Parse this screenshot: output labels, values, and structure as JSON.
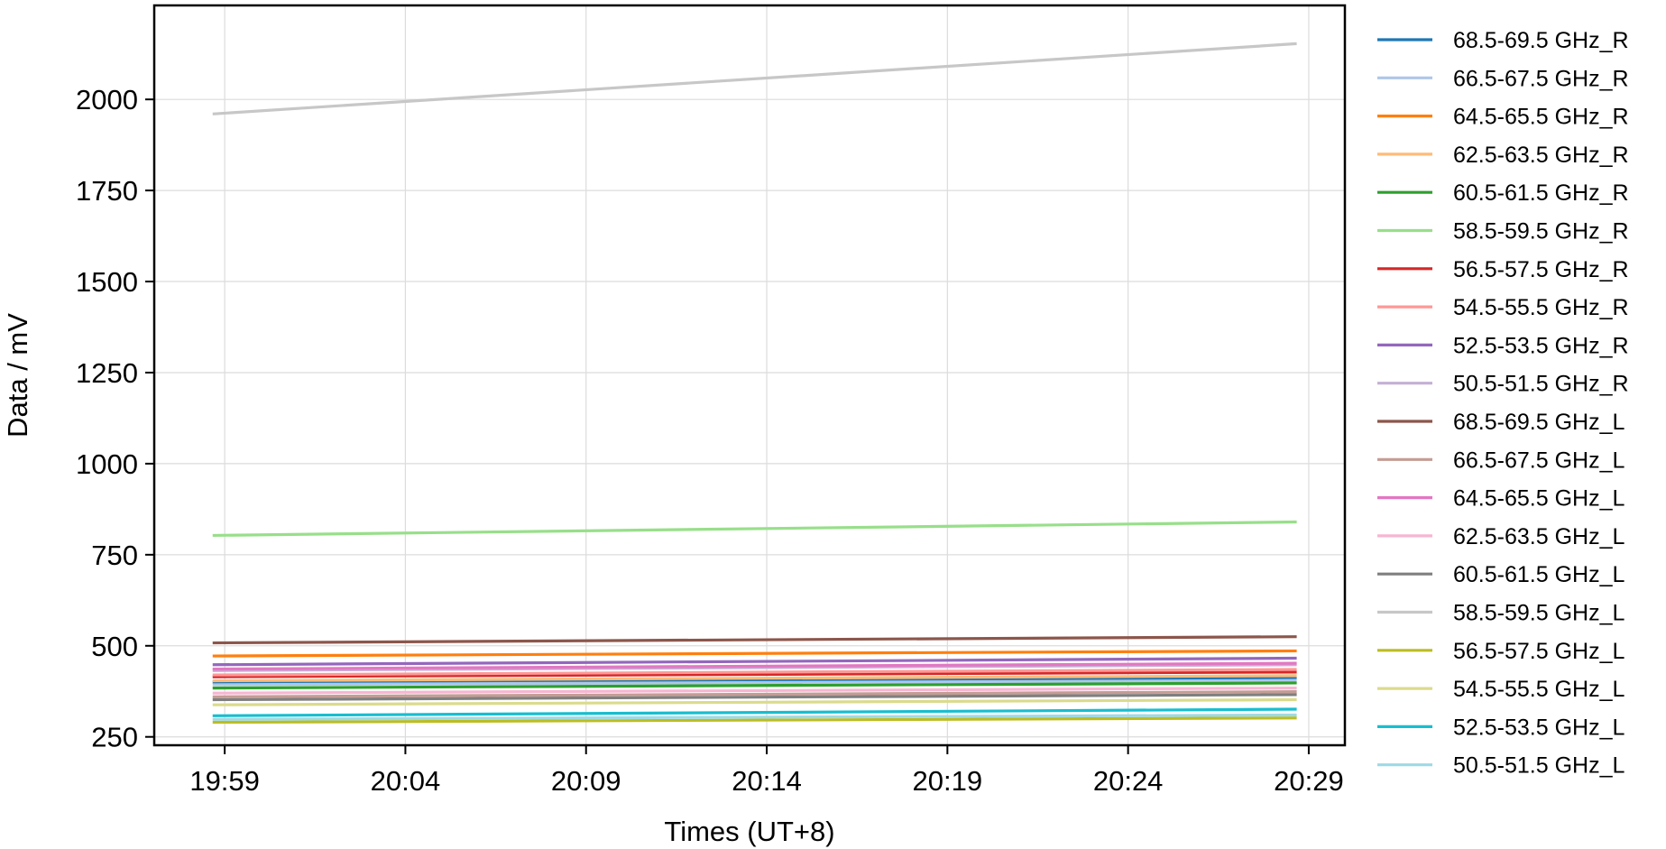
{
  "chart_data": {
    "type": "line",
    "xlabel": "Times (UT+8)",
    "ylabel": "Data / mV",
    "x_ticks": [
      "19:59",
      "20:04",
      "20:09",
      "20:14",
      "20:19",
      "20:24",
      "20:29"
    ],
    "y_ticks": [
      250,
      500,
      750,
      1000,
      1250,
      1500,
      1750,
      2000
    ],
    "xlim": [
      "19:57:03",
      "20:30:00"
    ],
    "ylim": [
      227,
      2258
    ],
    "x_start": "19:58:40",
    "x_end": "20:28:40",
    "grid": true,
    "legend_position": "outside-right",
    "series": [
      {
        "name": "68.5-69.5 GHz_R",
        "color": "#1f77b4",
        "start": 400,
        "end": 412
      },
      {
        "name": "66.5-67.5 GHz_R",
        "color": "#aec7e8",
        "start": 393,
        "end": 405
      },
      {
        "name": "64.5-65.5 GHz_R",
        "color": "#ff7f0e",
        "start": 472,
        "end": 486
      },
      {
        "name": "62.5-63.5 GHz_R",
        "color": "#ffbb78",
        "start": 404,
        "end": 418
      },
      {
        "name": "60.5-61.5 GHz_R",
        "color": "#2ca02c",
        "start": 384,
        "end": 398
      },
      {
        "name": "58.5-59.5 GHz_R",
        "color": "#98df8a",
        "start": 803,
        "end": 840
      },
      {
        "name": "56.5-57.5 GHz_R",
        "color": "#d62728",
        "start": 415,
        "end": 428
      },
      {
        "name": "54.5-55.5 GHz_R",
        "color": "#ff9896",
        "start": 420,
        "end": 435
      },
      {
        "name": "52.5-53.5 GHz_R",
        "color": "#9467bd",
        "start": 448,
        "end": 466
      },
      {
        "name": "50.5-51.5 GHz_R",
        "color": "#c5b0d5",
        "start": 432,
        "end": 448
      },
      {
        "name": "68.5-69.5 GHz_L",
        "color": "#8c564b",
        "start": 508,
        "end": 525
      },
      {
        "name": "66.5-67.5 GHz_L",
        "color": "#c49c94",
        "start": 360,
        "end": 374
      },
      {
        "name": "64.5-65.5 GHz_L",
        "color": "#e377c2",
        "start": 436,
        "end": 452
      },
      {
        "name": "62.5-63.5 GHz_L",
        "color": "#f7b6d2",
        "start": 370,
        "end": 384
      },
      {
        "name": "60.5-61.5 GHz_L",
        "color": "#7f7f7f",
        "start": 352,
        "end": 366
      },
      {
        "name": "58.5-59.5 GHz_L",
        "color": "#c7c7c7",
        "start": 1960,
        "end": 2153
      },
      {
        "name": "56.5-57.5 GHz_L",
        "color": "#bcbd22",
        "start": 290,
        "end": 302
      },
      {
        "name": "54.5-55.5 GHz_L",
        "color": "#dbdb8d",
        "start": 338,
        "end": 352
      },
      {
        "name": "52.5-53.5 GHz_L",
        "color": "#17becf",
        "start": 308,
        "end": 326
      },
      {
        "name": "50.5-51.5 GHz_L",
        "color": "#9edae5",
        "start": 298,
        "end": 310
      }
    ]
  }
}
